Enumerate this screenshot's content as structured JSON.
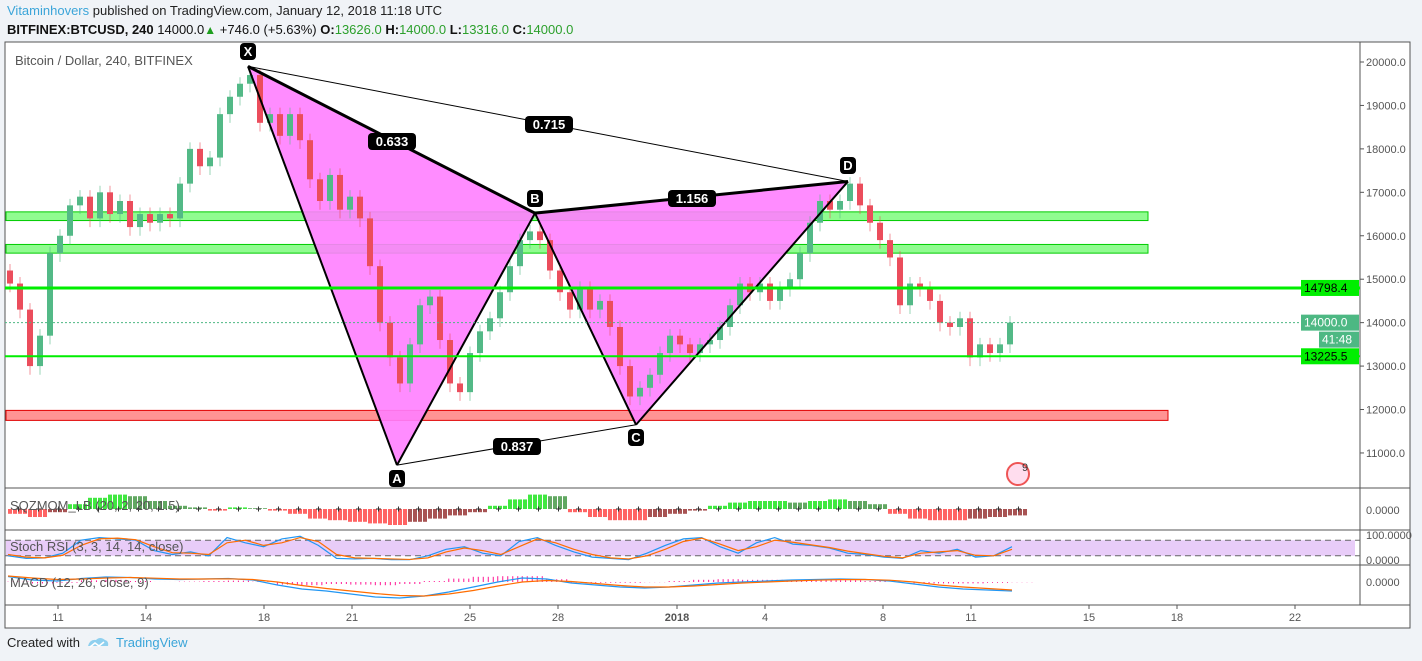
{
  "header": {
    "publisher": "Vitaminhovers",
    "published_text": "published on TradingView.com, January 12, 2018 11:18 UTC",
    "symbol": "BITFINEX:BTCUSD, 240",
    "last": "14000.0",
    "change": "+746.0 (+5.63%)",
    "o_label": "O:",
    "o": "13626.0",
    "h_label": "H:",
    "h": "14000.0",
    "l_label": "L:",
    "l": "13316.0",
    "c_label": "C:",
    "c": "14000.0"
  },
  "chart_data": {
    "type": "candlestick",
    "title": "Bitcoin / Dollar, 240, BITFINEX",
    "ylim": [
      10500,
      20400
    ],
    "y_ticks": [
      "20000.0",
      "19000.0",
      "18000.0",
      "17000.0",
      "16000.0",
      "15000.0",
      "14000.0",
      "13000.0",
      "12000.0",
      "11000.0"
    ],
    "x_ticks": [
      "11",
      "14",
      "18",
      "21",
      "25",
      "28",
      "2018",
      "4",
      "8",
      "11",
      "15",
      "18",
      "22"
    ],
    "closes": [
      14900,
      14300,
      13000,
      13700,
      15600,
      16000,
      16700,
      16900,
      16400,
      17000,
      16500,
      16800,
      16200,
      16500,
      16300,
      16500,
      16400,
      17200,
      18000,
      17600,
      17800,
      18800,
      19200,
      19500,
      19700,
      18600,
      18800,
      18300,
      18800,
      18200,
      17300,
      16800,
      17400,
      16600,
      16900,
      16400,
      15300,
      14000,
      13200,
      12600,
      13500,
      14400,
      14600,
      13600,
      12600,
      12400,
      13300,
      13800,
      14100,
      14700,
      15300,
      15900,
      16100,
      15900,
      15200,
      14700,
      14300,
      14800,
      14300,
      14500,
      13900,
      13000,
      12300,
      12500,
      12800,
      13300,
      13700,
      13500,
      13300,
      13500,
      13600,
      13900,
      14400,
      14900,
      14700,
      14900,
      14500,
      14800,
      15000,
      15600,
      16300,
      16800,
      16600,
      16800,
      17200,
      16700,
      16300,
      15900,
      15500,
      14400,
      14900,
      14800,
      14500,
      14000,
      13900,
      14100,
      13200,
      13500,
      13300,
      13500,
      14000
    ],
    "price_labels": {
      "level_upper": "14798.4",
      "last_price": "14000.0",
      "countdown": "41:48",
      "level_lower": "13225.5"
    },
    "levels": {
      "upper": 14798.4,
      "last": 14000.0,
      "lower": 13225.5
    },
    "zones": [
      {
        "from": 16350,
        "to": 16550,
        "color": "#7cfc7c"
      },
      {
        "from": 15600,
        "to": 15800,
        "color": "#7cfc7c"
      },
      {
        "from": 11750,
        "to": 11980,
        "color": "#ff8080"
      }
    ],
    "pattern": {
      "points": [
        {
          "label": "X",
          "price": 19900
        },
        {
          "label": "A",
          "price": 10720
        },
        {
          "label": "B",
          "price": 16520
        },
        {
          "label": "C",
          "price": 11650
        },
        {
          "label": "D",
          "price": 17250
        }
      ],
      "ratios": {
        "XB": "0.633",
        "XD": "0.715",
        "BD": "1.156",
        "AC": "0.837"
      },
      "fill_color": "#ff80ff"
    },
    "indicators": {
      "sqzmom": {
        "label": "SQZMOM_LB (20, 2, 20, 1.5)",
        "axis_label": "0.0000",
        "values": [
          -0.3,
          -0.5,
          -0.2,
          0.3,
          0.7,
          0.9,
          0.8,
          0.5,
          0.2,
          0.1,
          -0.1,
          0.1,
          0.05,
          -0.1,
          -0.3,
          -0.6,
          -0.7,
          -0.8,
          -0.9,
          -1.0,
          -0.8,
          -0.6,
          -0.4,
          -0.2,
          0.2,
          0.6,
          0.9,
          0.8,
          -0.2,
          -0.5,
          -0.7,
          -0.7,
          -0.5,
          -0.3,
          -0.1,
          0.2,
          0.4,
          0.5,
          0.5,
          0.4,
          0.5,
          0.6,
          0.5,
          0.3,
          -0.3,
          -0.6,
          -0.7,
          -0.7,
          -0.6,
          -0.5,
          -0.4
        ]
      },
      "stoch_rsi": {
        "label": "Stoch RSI (3, 3, 14, 14, close)",
        "axis_top": "100.0000",
        "axis_bottom": "0.0000",
        "k": [
          20,
          10,
          12,
          30,
          80,
          90,
          85,
          80,
          40,
          25,
          35,
          20,
          90,
          70,
          55,
          85,
          95,
          60,
          10,
          8,
          10,
          5,
          5,
          20,
          45,
          55,
          30,
          20,
          75,
          90,
          60,
          35,
          15,
          10,
          5,
          30,
          60,
          85,
          90,
          55,
          30,
          70,
          90,
          65,
          60,
          50,
          30,
          25,
          15,
          10,
          40,
          30,
          45,
          15,
          20,
          55
        ],
        "d": [
          25,
          15,
          12,
          22,
          60,
          85,
          88,
          82,
          55,
          32,
          30,
          25,
          70,
          80,
          60,
          70,
          90,
          75,
          25,
          12,
          10,
          8,
          6,
          12,
          35,
          50,
          40,
          25,
          55,
          85,
          70,
          45,
          25,
          12,
          8,
          20,
          45,
          75,
          88,
          65,
          40,
          55,
          80,
          72,
          62,
          52,
          38,
          28,
          18,
          12,
          30,
          35,
          40,
          22,
          20,
          45
        ]
      },
      "macd": {
        "label": "MACD (12, 26, close, 9)",
        "axis_label": "0.0000",
        "macd": [
          0.55,
          0.2,
          0.1,
          0.35,
          0.5,
          0.45,
          0.3,
          0.25,
          0.3,
          0.35,
          0.2,
          -0.3,
          -0.7,
          -0.9,
          -1.2,
          -1.5,
          -1.6,
          -1.4,
          -1.0,
          -0.5,
          0.0,
          0.4,
          0.3,
          -0.1,
          -0.3,
          -0.5,
          -0.6,
          -0.5,
          -0.3,
          -0.1,
          0.0,
          0.1,
          0.2,
          0.25,
          0.3,
          0.25,
          0.1,
          -0.2,
          -0.5,
          -0.7,
          -0.8,
          -0.9
        ],
        "signal": [
          0.6,
          0.4,
          0.25,
          0.3,
          0.4,
          0.45,
          0.38,
          0.3,
          0.3,
          0.32,
          0.25,
          0.0,
          -0.35,
          -0.65,
          -0.9,
          -1.15,
          -1.35,
          -1.4,
          -1.2,
          -0.85,
          -0.4,
          0.0,
          0.15,
          0.05,
          -0.15,
          -0.35,
          -0.5,
          -0.5,
          -0.4,
          -0.25,
          -0.1,
          0.0,
          0.1,
          0.18,
          0.24,
          0.25,
          0.18,
          0.0,
          -0.3,
          -0.5,
          -0.65,
          -0.8
        ]
      }
    },
    "colors": {
      "up": "#53b987",
      "down": "#eb4d5c",
      "level": "#00ee00",
      "last": "#4db883"
    }
  },
  "footer": {
    "created_with": "Created with",
    "brand": "TradingView"
  },
  "badge": {
    "count": "9"
  }
}
